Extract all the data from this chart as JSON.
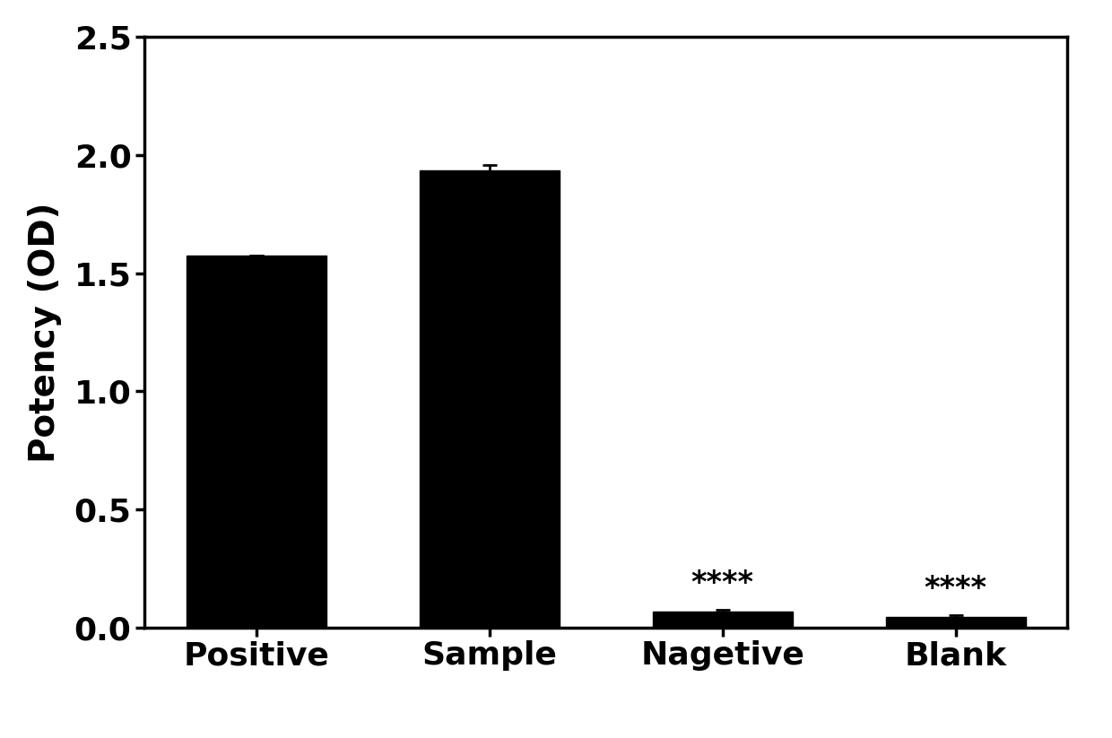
{
  "categories": [
    "Positive",
    "Sample",
    "Nagetive",
    "Blank"
  ],
  "values": [
    1.575,
    1.935,
    0.065,
    0.045
  ],
  "errors": [
    0.0,
    0.022,
    0.008,
    0.005
  ],
  "bar_color": "#000000",
  "background_color": "#ffffff",
  "ylabel": "Potency (OD)",
  "ylim": [
    0,
    2.5
  ],
  "yticks": [
    0.0,
    0.5,
    1.0,
    1.5,
    2.0,
    2.5
  ],
  "significance": [
    null,
    null,
    "****",
    "****"
  ],
  "bar_width": 0.6,
  "tick_label_fontsize": 26,
  "ylabel_fontsize": 28,
  "sig_fontsize": 24,
  "fig_width": 12.4,
  "fig_height": 8.23,
  "dpi": 100
}
